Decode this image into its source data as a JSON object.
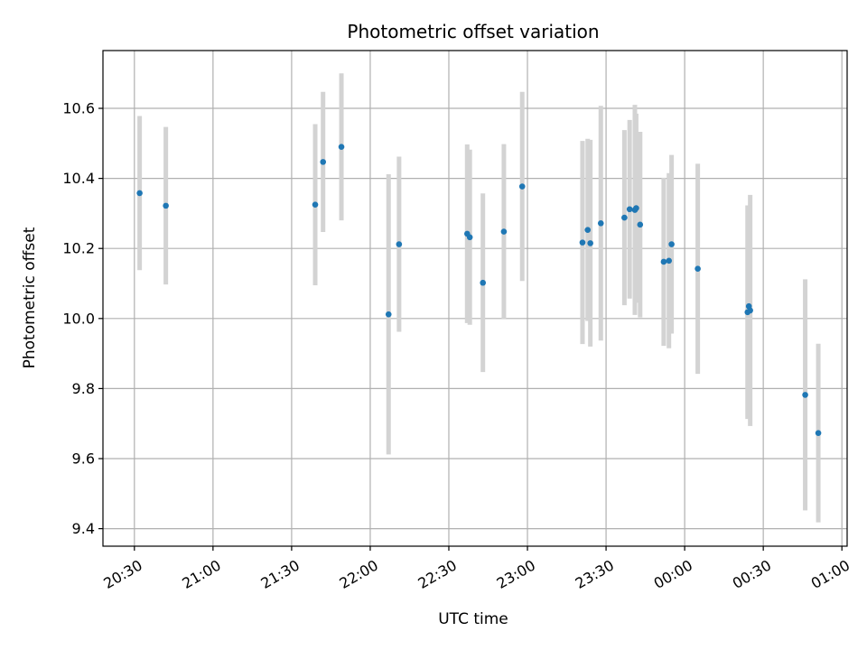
{
  "chart_data": {
    "type": "scatter",
    "title": "Photometric offset variation",
    "xlabel": "UTC time",
    "ylabel": "Photometric offset",
    "grid": true,
    "ylim": [
      9.35,
      10.765
    ],
    "xlim": [
      "20:18",
      "01:02"
    ],
    "x_ticks": [
      "20:30",
      "21:00",
      "21:30",
      "22:00",
      "22:30",
      "23:00",
      "23:30",
      "00:00",
      "00:30",
      "01:00"
    ],
    "y_ticks": [
      9.4,
      9.6,
      9.8,
      10.0,
      10.2,
      10.4,
      10.6
    ],
    "colors": {
      "point": "#1f77b4",
      "errorbar": "#d3d3d3",
      "grid": "#b0b0b0"
    },
    "points": [
      {
        "x": "20:32",
        "y": 10.358,
        "err": 0.22
      },
      {
        "x": "20:42",
        "y": 10.322,
        "err": 0.225
      },
      {
        "x": "21:39",
        "y": 10.325,
        "err": 0.23
      },
      {
        "x": "21:42",
        "y": 10.447,
        "err": 0.2
      },
      {
        "x": "21:49",
        "y": 10.49,
        "err": 0.21
      },
      {
        "x": "22:07",
        "y": 10.012,
        "err": 0.4
      },
      {
        "x": "22:11",
        "y": 10.212,
        "err": 0.25
      },
      {
        "x": "22:37",
        "y": 10.242,
        "err": 0.255
      },
      {
        "x": "22:38",
        "y": 10.232,
        "err": 0.25
      },
      {
        "x": "22:43",
        "y": 10.102,
        "err": 0.255
      },
      {
        "x": "22:51",
        "y": 10.248,
        "err": 0.25
      },
      {
        "x": "22:58",
        "y": 10.377,
        "err": 0.27
      },
      {
        "x": "23:21",
        "y": 10.217,
        "err": 0.29
      },
      {
        "x": "23:23",
        "y": 10.253,
        "err": 0.26
      },
      {
        "x": "23:24",
        "y": 10.215,
        "err": 0.295
      },
      {
        "x": "23:28",
        "y": 10.272,
        "err": 0.335
      },
      {
        "x": "23:37",
        "y": 10.288,
        "err": 0.25
      },
      {
        "x": "23:39",
        "y": 10.312,
        "err": 0.255
      },
      {
        "x": "23:41",
        "y": 10.31,
        "err": 0.3
      },
      {
        "x": "23:41.5",
        "y": 10.315,
        "err": 0.27
      },
      {
        "x": "23:43",
        "y": 10.268,
        "err": 0.265
      },
      {
        "x": "23:52",
        "y": 10.162,
        "err": 0.24
      },
      {
        "x": "23:54",
        "y": 10.165,
        "err": 0.25
      },
      {
        "x": "23:55",
        "y": 10.212,
        "err": 0.255
      },
      {
        "x": "00:05",
        "y": 10.142,
        "err": 0.3
      },
      {
        "x": "00:24",
        "y": 10.018,
        "err": 0.305
      },
      {
        "x": "00:24.5",
        "y": 10.035,
        "err": 0.285
      },
      {
        "x": "00:25",
        "y": 10.023,
        "err": 0.33
      },
      {
        "x": "00:46",
        "y": 9.782,
        "err": 0.33
      },
      {
        "x": "00:51",
        "y": 9.673,
        "err": 0.255
      }
    ]
  }
}
